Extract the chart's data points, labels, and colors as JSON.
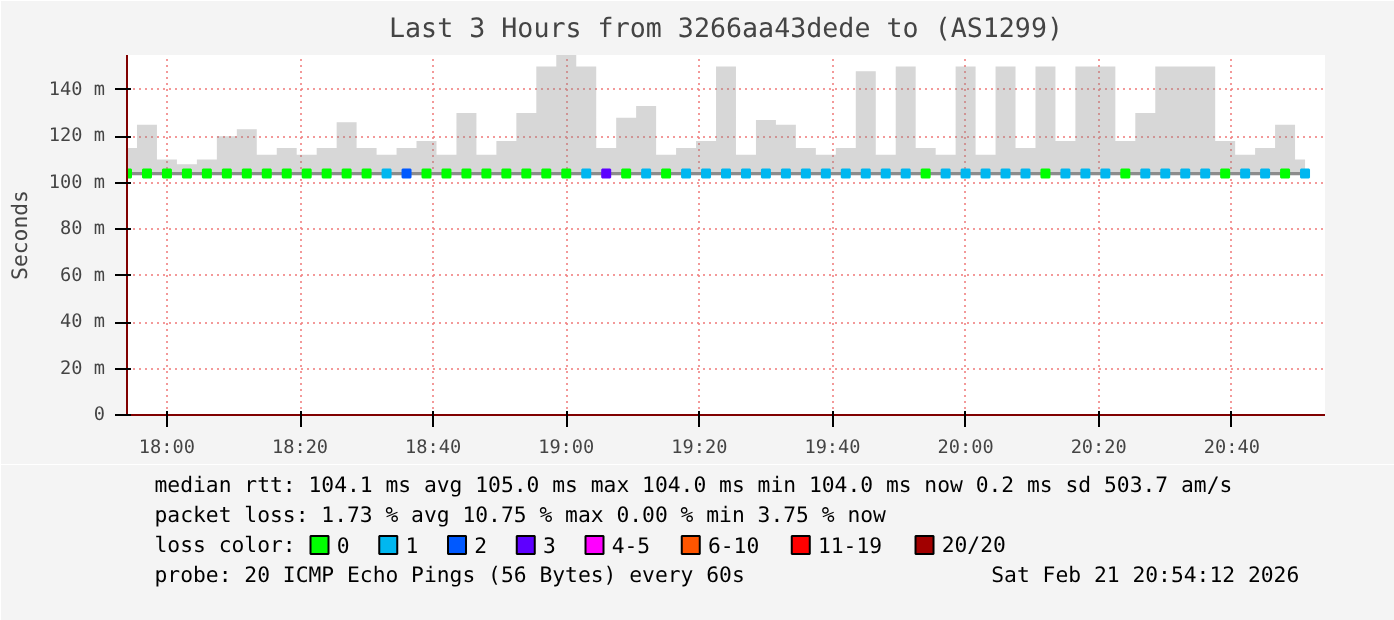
{
  "chart_data": {
    "type": "scatter",
    "marker": "square",
    "title": "Last 3 Hours from 3266aa43dede to (AS1299)",
    "ylabel": "Seconds",
    "x": [
      17.9,
      17.95,
      18.0,
      18.05,
      18.1,
      18.15,
      18.2,
      18.25,
      18.3,
      18.35,
      18.4,
      18.45,
      18.5,
      18.55,
      18.6,
      18.65,
      18.7,
      18.75,
      18.8,
      18.85,
      18.9,
      18.95,
      19.0,
      19.05,
      19.1,
      19.15,
      19.2,
      19.25,
      19.3,
      19.35,
      19.4,
      19.45,
      19.5,
      19.55,
      19.6,
      19.65,
      19.7,
      19.75,
      19.8,
      19.85,
      19.9,
      19.95,
      20.0,
      20.05,
      20.1,
      20.15,
      20.2,
      20.25,
      20.3,
      20.35,
      20.4,
      20.45,
      20.5,
      20.55,
      20.6,
      20.65,
      20.7,
      20.75,
      20.8,
      20.85
    ],
    "series": [
      {
        "type": "line",
        "marker": "none",
        "color": "#8c8c8c",
        "values": [
          104,
          104,
          104,
          104,
          104,
          104,
          104,
          104,
          104,
          104,
          104,
          104,
          104,
          104,
          104,
          104,
          104,
          104,
          104,
          104,
          104,
          104,
          104,
          104,
          104,
          104,
          104,
          104,
          104,
          104,
          104,
          104,
          104,
          104,
          104,
          104,
          104,
          104,
          104,
          104,
          104,
          104,
          104,
          104,
          104,
          104,
          104,
          104,
          104,
          104,
          104,
          104,
          104,
          104,
          104,
          104,
          104,
          104,
          104,
          104
        ],
        "lower": [
          103,
          103,
          103,
          103,
          103,
          103,
          103,
          103,
          103,
          103,
          103,
          103,
          103,
          103,
          103,
          103,
          103,
          103,
          103,
          103,
          103,
          103,
          103,
          103,
          103,
          103,
          103,
          103,
          103,
          103,
          103,
          103,
          103,
          103,
          103,
          103,
          103,
          103,
          103,
          103,
          103,
          103,
          103,
          103,
          103,
          103,
          103,
          103,
          103,
          103,
          103,
          103,
          103,
          103,
          103,
          103,
          103,
          103,
          103,
          103
        ],
        "upper": [
          115,
          125,
          110,
          108,
          110,
          120,
          123,
          112,
          115,
          112,
          115,
          126,
          115,
          112,
          115,
          118,
          112,
          130,
          112,
          118,
          130,
          150,
          155,
          150,
          115,
          128,
          133,
          112,
          115,
          118,
          150,
          112,
          127,
          125,
          115,
          112,
          115,
          148,
          112,
          150,
          115,
          112,
          150,
          112,
          150,
          115,
          150,
          118,
          150,
          150,
          118,
          130,
          150,
          150,
          150,
          118,
          112,
          115,
          125,
          110
        ]
      },
      {
        "name": "0",
        "color": "#00ff00",
        "values": [
          104,
          104,
          104,
          104,
          104,
          104,
          104,
          104,
          104,
          104,
          104,
          104,
          104,
          null,
          null,
          104,
          104,
          104,
          104,
          104,
          104,
          104,
          104,
          null,
          null,
          104,
          null,
          104,
          null,
          null,
          null,
          null,
          null,
          null,
          null,
          null,
          null,
          null,
          null,
          null,
          104,
          null,
          null,
          null,
          null,
          null,
          104,
          null,
          null,
          null,
          104,
          null,
          null,
          null,
          null,
          104,
          null,
          null,
          104,
          null
        ]
      },
      {
        "name": "1",
        "color": "#00b7f0",
        "values": [
          null,
          null,
          null,
          null,
          null,
          null,
          null,
          null,
          null,
          null,
          null,
          null,
          null,
          104,
          null,
          null,
          null,
          null,
          null,
          null,
          null,
          null,
          null,
          104,
          null,
          null,
          104,
          null,
          104,
          104,
          104,
          104,
          104,
          104,
          104,
          104,
          104,
          104,
          104,
          104,
          null,
          104,
          104,
          104,
          104,
          104,
          null,
          104,
          104,
          104,
          null,
          104,
          104,
          104,
          104,
          null,
          104,
          104,
          null,
          104
        ]
      },
      {
        "name": "2",
        "color": "#0059ff",
        "values": [
          null,
          null,
          null,
          null,
          null,
          null,
          null,
          null,
          null,
          null,
          null,
          null,
          null,
          null,
          104,
          null,
          null,
          null,
          null,
          null,
          null,
          null,
          null,
          null,
          null,
          null,
          null,
          null,
          null,
          null,
          null,
          null,
          null,
          null,
          null,
          null,
          null,
          null,
          null,
          null,
          null,
          null,
          null,
          null,
          null,
          null,
          null,
          null,
          null,
          null,
          null,
          null,
          null,
          null,
          null,
          null,
          null,
          null,
          null,
          null
        ]
      },
      {
        "name": "3",
        "color": "#5e00ff",
        "values": [
          null,
          null,
          null,
          null,
          null,
          null,
          null,
          null,
          null,
          null,
          null,
          null,
          null,
          null,
          null,
          null,
          null,
          null,
          null,
          null,
          null,
          null,
          null,
          null,
          104,
          null,
          null,
          null,
          null,
          null,
          null,
          null,
          null,
          null,
          null,
          null,
          null,
          null,
          null,
          null,
          null,
          null,
          null,
          null,
          null,
          null,
          null,
          null,
          null,
          null,
          null,
          null,
          null,
          null,
          null,
          null,
          null,
          null,
          null,
          null
        ]
      },
      {
        "name": "4-5",
        "color": "#ff00ff",
        "values": [
          null,
          null,
          null,
          null,
          null,
          null,
          null,
          null,
          null,
          null,
          null,
          null,
          null,
          null,
          null,
          null,
          null,
          null,
          null,
          null,
          null,
          null,
          null,
          null,
          null,
          null,
          null,
          null,
          null,
          null,
          null,
          null,
          null,
          null,
          null,
          null,
          null,
          null,
          null,
          null,
          null,
          null,
          null,
          null,
          null,
          null,
          null,
          null,
          null,
          null,
          null,
          null,
          null,
          null,
          null,
          null,
          null,
          null,
          null,
          null
        ]
      },
      {
        "name": "6-10",
        "color": "#ff5500",
        "values": [
          null,
          null,
          null,
          null,
          null,
          null,
          null,
          null,
          null,
          null,
          null,
          null,
          null,
          null,
          null,
          null,
          null,
          null,
          null,
          null,
          null,
          null,
          null,
          null,
          null,
          null,
          null,
          null,
          null,
          null,
          null,
          null,
          null,
          null,
          null,
          null,
          null,
          null,
          null,
          null,
          null,
          null,
          null,
          null,
          null,
          null,
          null,
          null,
          null,
          null,
          null,
          null,
          null,
          null,
          null,
          null,
          null,
          null,
          null,
          null
        ]
      },
      {
        "name": "11-19",
        "color": "#ff0000",
        "values": [
          null,
          null,
          null,
          null,
          null,
          null,
          null,
          null,
          null,
          null,
          null,
          null,
          null,
          null,
          null,
          null,
          null,
          null,
          null,
          null,
          null,
          null,
          null,
          null,
          null,
          null,
          null,
          null,
          null,
          null,
          null,
          null,
          null,
          null,
          null,
          null,
          null,
          null,
          null,
          null,
          null,
          null,
          null,
          null,
          null,
          null,
          null,
          null,
          null,
          null,
          null,
          null,
          null,
          null,
          null,
          null,
          null,
          null,
          null,
          null
        ]
      },
      {
        "name": "20/20",
        "color": "#a10000",
        "values": [
          null,
          null,
          null,
          null,
          null,
          null,
          null,
          null,
          null,
          null,
          null,
          null,
          null,
          null,
          null,
          null,
          null,
          null,
          null,
          null,
          null,
          null,
          null,
          null,
          null,
          null,
          null,
          null,
          null,
          null,
          null,
          null,
          null,
          null,
          null,
          null,
          null,
          null,
          null,
          null,
          null,
          null,
          null,
          null,
          null,
          null,
          null,
          null,
          null,
          null,
          null,
          null,
          null,
          null,
          null,
          null,
          null,
          null,
          null,
          null
        ]
      }
    ],
    "xlim": [
      17.9,
      20.9
    ],
    "ylim": [
      0,
      155
    ],
    "xticks": [
      {
        "value": 18.0,
        "label": "18:00"
      },
      {
        "value": 18.333333,
        "label": "18:20"
      },
      {
        "value": 18.666667,
        "label": "18:40"
      },
      {
        "value": 19.0,
        "label": "19:00"
      },
      {
        "value": 19.333333,
        "label": "19:20"
      },
      {
        "value": 19.666667,
        "label": "19:40"
      },
      {
        "value": 20.0,
        "label": "20:00"
      },
      {
        "value": 20.333333,
        "label": "20:20"
      },
      {
        "value": 20.666667,
        "label": "20:40"
      }
    ],
    "yticks": [
      0,
      {
        "value": 20,
        "label": "20 m"
      },
      {
        "value": 40,
        "label": "40 m"
      },
      {
        "value": 60,
        "label": "60 m"
      },
      {
        "value": 80,
        "label": "80 m"
      },
      {
        "value": 100,
        "label": "100 m"
      },
      {
        "value": 120,
        "label": "120 m"
      },
      {
        "value": 140,
        "label": "140 m"
      }
    ],
    "grid": true,
    "legend": "bottom",
    "legend_title": "loss color:",
    "annotations": [
      "median rtt:  104.1 ms avg  105.0 ms max  104.0 ms min  104.0 ms now  0.2 ms sd  503.7   am/s",
      "packet loss: 1.73 % avg  10.75 % max  0.00 % min  3.75 % now",
      "probe:       20 ICMP Echo Pings (56 Bytes) every 60s",
      "Sat Feb 21 20:54:12 2026"
    ]
  }
}
